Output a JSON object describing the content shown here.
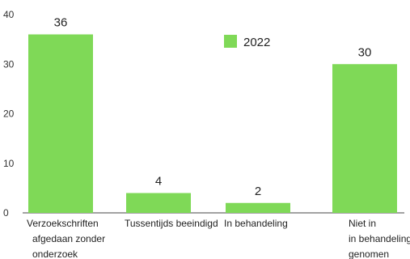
{
  "chart_data": {
    "type": "bar",
    "categories": [
      [
        "Verzoekschriften",
        "afgedaan zonder",
        "onderzoek"
      ],
      [
        "Tussentijds beeindigd"
      ],
      [
        "In behandeling"
      ],
      [
        "Niet in",
        "in behandeling",
        "genomen"
      ]
    ],
    "series": [
      {
        "name": "2022",
        "values": [
          36,
          4,
          2,
          30
        ]
      }
    ],
    "yticks": [
      "0",
      "10",
      "20",
      "30",
      "40"
    ],
    "ylim": [
      0,
      40
    ],
    "legend_position": "top-right",
    "bar_color": "#7fd957",
    "grid": false
  }
}
